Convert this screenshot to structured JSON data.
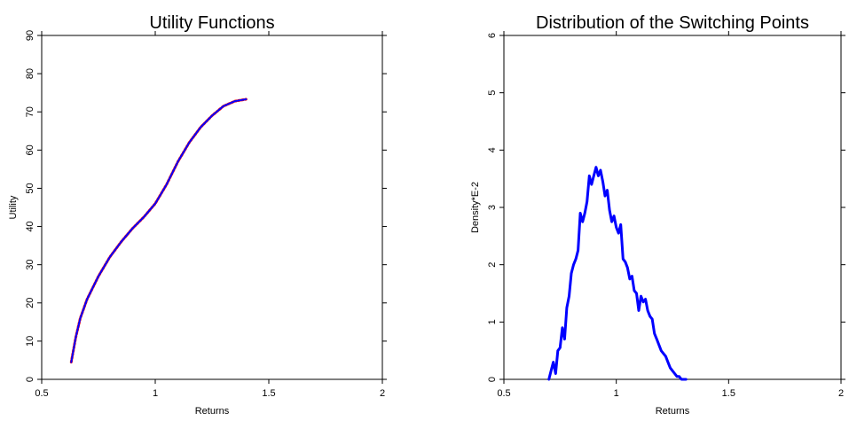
{
  "chart_data": [
    {
      "type": "line",
      "title": "Utility Functions",
      "xlabel": "Returns",
      "ylabel": "Utility",
      "xlim": [
        0.5,
        2
      ],
      "ylim": [
        0,
        90
      ],
      "x_ticks": [
        "0.5",
        "1",
        "1.5",
        "2"
      ],
      "y_ticks": [
        "0",
        "10",
        "20",
        "30",
        "40",
        "50",
        "60",
        "70",
        "80",
        "90"
      ],
      "x_tick_values": [
        0.5,
        1,
        1.5,
        2
      ],
      "y_tick_values": [
        0,
        10,
        20,
        30,
        40,
        50,
        60,
        70,
        80,
        90
      ],
      "grid": false,
      "series": [
        {
          "color": "#ff0000",
          "style": "dashed",
          "x": [
            0.63,
            0.65,
            0.67,
            0.7,
            0.75,
            0.8,
            0.85,
            0.9,
            0.95,
            1.0,
            1.05,
            1.1,
            1.15,
            1.2,
            1.25,
            1.3,
            1.35,
            1.4
          ],
          "y": [
            4.5,
            11,
            16,
            21,
            27,
            32,
            36,
            39.5,
            42.5,
            46,
            51,
            57,
            62,
            66,
            69,
            71.5,
            72.8,
            73.3
          ]
        },
        {
          "color": "#0000ff",
          "style": "solid",
          "x": [
            0.63,
            0.65,
            0.67,
            0.7,
            0.75,
            0.8,
            0.85,
            0.9,
            0.95,
            1.0,
            1.05,
            1.1,
            1.15,
            1.2,
            1.25,
            1.3,
            1.35,
            1.4
          ],
          "y": [
            4.5,
            11,
            16,
            21,
            27,
            32,
            36,
            39.5,
            42.5,
            46,
            51,
            57,
            62,
            66,
            69,
            71.5,
            72.8,
            73.3
          ]
        }
      ]
    },
    {
      "type": "line",
      "title": "Distribution of the Switching Points",
      "xlabel": "Returns",
      "ylabel": "Density*E-2",
      "xlim": [
        0.5,
        2
      ],
      "ylim": [
        0,
        6
      ],
      "x_ticks": [
        "0.5",
        "1",
        "1.5",
        "2"
      ],
      "y_ticks": [
        "0",
        "1",
        "2",
        "3",
        "4",
        "5",
        "6"
      ],
      "x_tick_values": [
        0.5,
        1,
        1.5,
        2
      ],
      "y_tick_values": [
        0,
        1,
        2,
        3,
        4,
        5,
        6
      ],
      "grid": false,
      "series": [
        {
          "color": "#0000ff",
          "style": "solid",
          "x": [
            0.7,
            0.71,
            0.72,
            0.73,
            0.74,
            0.75,
            0.76,
            0.77,
            0.78,
            0.79,
            0.8,
            0.81,
            0.82,
            0.83,
            0.84,
            0.85,
            0.86,
            0.87,
            0.88,
            0.89,
            0.9,
            0.91,
            0.92,
            0.93,
            0.94,
            0.95,
            0.96,
            0.97,
            0.98,
            0.99,
            1.0,
            1.01,
            1.02,
            1.03,
            1.04,
            1.05,
            1.06,
            1.07,
            1.08,
            1.09,
            1.1,
            1.11,
            1.12,
            1.13,
            1.14,
            1.15,
            1.16,
            1.17,
            1.18,
            1.19,
            1.2,
            1.21,
            1.22,
            1.23,
            1.24,
            1.25,
            1.26,
            1.27,
            1.28,
            1.29,
            1.3,
            1.31
          ],
          "y": [
            0.0,
            0.15,
            0.3,
            0.1,
            0.5,
            0.55,
            0.9,
            0.7,
            1.25,
            1.45,
            1.85,
            2.0,
            2.1,
            2.25,
            2.9,
            2.75,
            2.9,
            3.1,
            3.55,
            3.4,
            3.55,
            3.7,
            3.55,
            3.65,
            3.45,
            3.2,
            3.3,
            2.95,
            2.75,
            2.85,
            2.65,
            2.55,
            2.7,
            2.1,
            2.05,
            1.95,
            1.75,
            1.8,
            1.55,
            1.5,
            1.2,
            1.45,
            1.35,
            1.4,
            1.2,
            1.1,
            1.05,
            0.8,
            0.7,
            0.6,
            0.5,
            0.45,
            0.4,
            0.3,
            0.2,
            0.15,
            0.1,
            0.05,
            0.05,
            0.0,
            0.0,
            0.0
          ]
        }
      ]
    }
  ]
}
